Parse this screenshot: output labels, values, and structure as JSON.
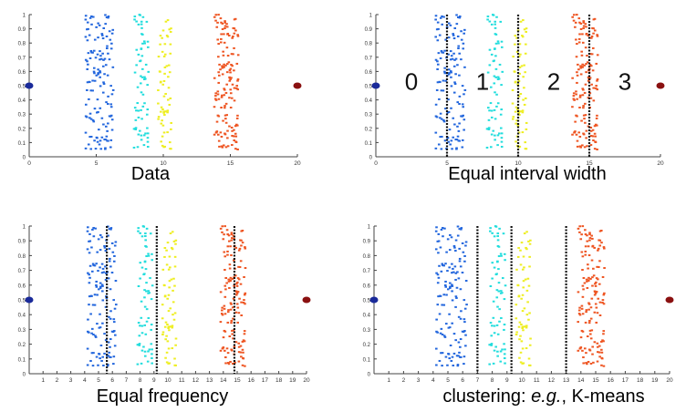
{
  "chart_data": [
    {
      "type": "scatter",
      "panel": "data",
      "title": "Data",
      "xlim": [
        0,
        20
      ],
      "ylim": [
        0,
        1
      ],
      "x_ticks": [
        0,
        5,
        10,
        15,
        20
      ],
      "y_ticks": [
        0,
        0.1,
        0.2,
        0.3,
        0.4,
        0.5,
        0.6,
        0.7,
        0.8,
        0.9,
        1
      ],
      "clusters": [
        {
          "color": "#2266dd",
          "x_range": [
            4.2,
            6.3
          ],
          "n": 140
        },
        {
          "color": "#22dddd",
          "x_range": [
            7.8,
            8.9
          ],
          "n": 70
        },
        {
          "color": "#eeee22",
          "x_range": [
            9.6,
            10.6
          ],
          "n": 65
        },
        {
          "color": "#ee5522",
          "x_range": [
            13.8,
            15.6
          ],
          "n": 150
        }
      ],
      "outliers": [
        {
          "x": 0,
          "y": 0.5,
          "color": "#1a2a9a"
        },
        {
          "x": 20,
          "y": 0.5,
          "color": "#8a1010"
        }
      ],
      "boundaries": [],
      "bin_labels": []
    },
    {
      "type": "scatter",
      "panel": "equal-interval",
      "title": "Equal interval width",
      "xlim": [
        0,
        20
      ],
      "ylim": [
        0,
        1
      ],
      "x_ticks": [
        0,
        5,
        10,
        15,
        20
      ],
      "y_ticks": [
        0,
        0.1,
        0.2,
        0.3,
        0.4,
        0.5,
        0.6,
        0.7,
        0.8,
        0.9,
        1
      ],
      "clusters": [
        {
          "color": "#2266dd",
          "x_range": [
            4.2,
            6.3
          ],
          "n": 140
        },
        {
          "color": "#22dddd",
          "x_range": [
            7.8,
            8.9
          ],
          "n": 70
        },
        {
          "color": "#eeee22",
          "x_range": [
            9.6,
            10.6
          ],
          "n": 65
        },
        {
          "color": "#ee5522",
          "x_range": [
            13.8,
            15.6
          ],
          "n": 150
        }
      ],
      "outliers": [
        {
          "x": 0,
          "y": 0.5,
          "color": "#1a2a9a"
        },
        {
          "x": 20,
          "y": 0.5,
          "color": "#8a1010"
        }
      ],
      "boundaries": [
        5,
        10,
        15
      ],
      "bin_labels": [
        {
          "text": "0",
          "x": 2.5
        },
        {
          "text": "1",
          "x": 7.5
        },
        {
          "text": "2",
          "x": 12.5
        },
        {
          "text": "3",
          "x": 17.5
        }
      ]
    },
    {
      "type": "scatter",
      "panel": "equal-frequency",
      "title": "Equal frequency",
      "xlim": [
        0,
        20
      ],
      "ylim": [
        0,
        1
      ],
      "x_ticks": [
        1,
        2,
        3,
        4,
        5,
        6,
        7,
        8,
        9,
        10,
        11,
        12,
        13,
        14,
        15,
        16,
        17,
        18,
        19,
        20
      ],
      "y_ticks": [
        0,
        0.1,
        0.2,
        0.3,
        0.4,
        0.5,
        0.6,
        0.7,
        0.8,
        0.9,
        1
      ],
      "clusters": [
        {
          "color": "#2266dd",
          "x_range": [
            4.2,
            6.3
          ],
          "n": 140
        },
        {
          "color": "#22dddd",
          "x_range": [
            7.8,
            8.9
          ],
          "n": 70
        },
        {
          "color": "#eeee22",
          "x_range": [
            9.6,
            10.6
          ],
          "n": 65
        },
        {
          "color": "#ee5522",
          "x_range": [
            13.8,
            15.6
          ],
          "n": 150
        }
      ],
      "outliers": [
        {
          "x": 0,
          "y": 0.5,
          "color": "#1a2a9a"
        },
        {
          "x": 20,
          "y": 0.5,
          "color": "#8a1010"
        }
      ],
      "boundaries": [
        5.6,
        9.2,
        14.8
      ],
      "bin_labels": []
    },
    {
      "type": "scatter",
      "panel": "kmeans",
      "title": "clustering: e.g., K-means",
      "title_italic_part": "e.g.",
      "xlim": [
        0,
        20
      ],
      "ylim": [
        0,
        1
      ],
      "x_ticks": [
        1,
        2,
        3,
        4,
        5,
        6,
        7,
        8,
        9,
        10,
        11,
        12,
        13,
        14,
        15,
        16,
        17,
        18,
        19,
        20
      ],
      "y_ticks": [
        0,
        0.1,
        0.2,
        0.3,
        0.4,
        0.5,
        0.6,
        0.7,
        0.8,
        0.9,
        1
      ],
      "clusters": [
        {
          "color": "#2266dd",
          "x_range": [
            4.2,
            6.3
          ],
          "n": 140
        },
        {
          "color": "#22dddd",
          "x_range": [
            7.8,
            8.9
          ],
          "n": 70
        },
        {
          "color": "#eeee22",
          "x_range": [
            9.6,
            10.6
          ],
          "n": 65
        },
        {
          "color": "#ee5522",
          "x_range": [
            13.8,
            15.6
          ],
          "n": 150
        }
      ],
      "outliers": [
        {
          "x": 0,
          "y": 0.5,
          "color": "#1a2a9a"
        },
        {
          "x": 20,
          "y": 0.5,
          "color": "#8a1010"
        }
      ],
      "boundaries": [
        7.0,
        9.3,
        13.0
      ],
      "bin_labels": []
    }
  ],
  "captions": {
    "data": "Data",
    "equal_interval": "Equal interval width",
    "equal_frequency": "Equal frequency",
    "kmeans_before": "clustering: ",
    "kmeans_italic": "e.g.",
    "kmeans_after": ", K-means"
  }
}
